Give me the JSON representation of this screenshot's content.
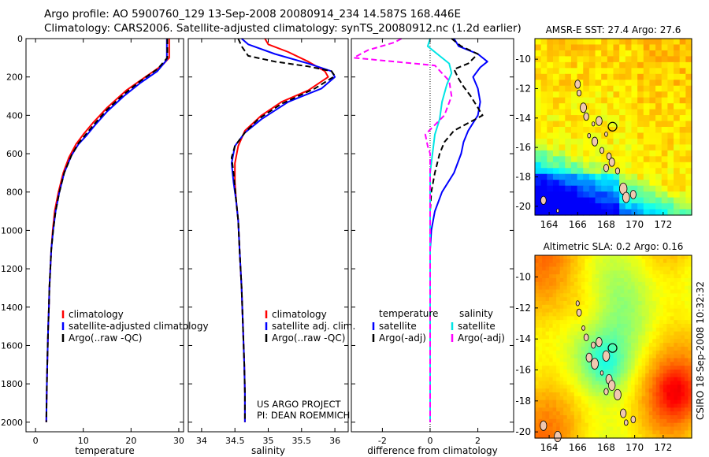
{
  "header": {
    "line1": "Argo profile: AO 5900760_129 13-Sep-2008 20080914_234 14.587S 168.446E",
    "line2": "Climatology: CARS2006. Satellite-adjusted climatology: synTS_20080912.nc (1.2d earlier)"
  },
  "colors": {
    "climatology": "#ff0000",
    "satellite": "#0000ff",
    "argo": "#000000",
    "sat_salinity_diff": "#00e5e5",
    "argo_salinity_diff": "#ff00ff"
  },
  "side_text": "CSIRO 18-Sep-2008 10:32:32",
  "chart_data": [
    {
      "type": "line",
      "xlabel": "temperature",
      "ylim": [
        2050,
        0
      ],
      "xlim": [
        -2,
        31
      ],
      "xticks": [
        "0",
        "10",
        "20",
        "30"
      ],
      "yticks": [
        "0",
        "200",
        "400",
        "600",
        "800",
        "1000",
        "1200",
        "1400",
        "1600",
        "1800",
        "2000"
      ],
      "legend": [
        "climatology",
        "satellite-adjusted climatology",
        "Argo(..raw -QC)"
      ],
      "series": [
        {
          "name": "climatology",
          "style": "solid",
          "color": "#ff0000",
          "points": [
            [
              28.0,
              0
            ],
            [
              28.0,
              100
            ],
            [
              26.5,
              140
            ],
            [
              23.0,
              200
            ],
            [
              19.0,
              270
            ],
            [
              15.0,
              360
            ],
            [
              12.0,
              440
            ],
            [
              10.0,
              500
            ],
            [
              8.5,
              550
            ],
            [
              7.0,
              620
            ],
            [
              5.8,
              700
            ],
            [
              4.8,
              800
            ],
            [
              4.0,
              900
            ],
            [
              3.6,
              1000
            ],
            [
              3.3,
              1100
            ],
            [
              3.1,
              1200
            ],
            [
              2.9,
              1300
            ],
            [
              2.8,
              1400
            ],
            [
              2.65,
              1500
            ],
            [
              2.55,
              1600
            ],
            [
              2.45,
              1700
            ],
            [
              2.38,
              1800
            ],
            [
              2.3,
              1900
            ],
            [
              2.25,
              2000
            ]
          ]
        },
        {
          "name": "satellite-adjusted climatology",
          "style": "solid",
          "color": "#0000ff",
          "points": [
            [
              27.5,
              0
            ],
            [
              27.5,
              110
            ],
            [
              25.5,
              170
            ],
            [
              22.0,
              230
            ],
            [
              18.5,
              300
            ],
            [
              15.0,
              380
            ],
            [
              12.5,
              450
            ],
            [
              10.5,
              510
            ],
            [
              9.0,
              550
            ],
            [
              7.5,
              610
            ],
            [
              6.0,
              700
            ],
            [
              5.0,
              800
            ],
            [
              4.2,
              900
            ],
            [
              3.7,
              1000
            ],
            [
              3.3,
              1100
            ],
            [
              3.1,
              1200
            ],
            [
              2.9,
              1300
            ],
            [
              2.8,
              1400
            ],
            [
              2.65,
              1500
            ],
            [
              2.55,
              1600
            ],
            [
              2.45,
              1700
            ],
            [
              2.38,
              1800
            ],
            [
              2.3,
              1900
            ],
            [
              2.25,
              2000
            ]
          ]
        },
        {
          "name": "Argo(..raw -QC)",
          "style": "dashed",
          "color": "#000000",
          "points": [
            [
              27.6,
              0
            ],
            [
              27.6,
              100
            ],
            [
              25.5,
              160
            ],
            [
              22.0,
              220
            ],
            [
              18.5,
              290
            ],
            [
              15.0,
              370
            ],
            [
              12.5,
              440
            ],
            [
              10.5,
              500
            ],
            [
              9.0,
              545
            ],
            [
              7.5,
              610
            ],
            [
              6.0,
              700
            ],
            [
              5.0,
              800
            ],
            [
              4.2,
              900
            ],
            [
              3.7,
              1000
            ],
            [
              3.3,
              1100
            ],
            [
              3.1,
              1200
            ],
            [
              2.9,
              1300
            ],
            [
              2.8,
              1400
            ],
            [
              2.65,
              1500
            ],
            [
              2.55,
              1600
            ],
            [
              2.45,
              1700
            ],
            [
              2.38,
              1800
            ],
            [
              2.3,
              1900
            ],
            [
              2.25,
              2000
            ]
          ]
        }
      ]
    },
    {
      "type": "line",
      "xlabel": "salinity",
      "ylim": [
        2050,
        0
      ],
      "xlim": [
        33.8,
        36.2
      ],
      "xticks": [
        "34",
        "34.5",
        "35",
        "35.5",
        "36"
      ],
      "legend": [
        "climatology",
        "satellite adj. clim.",
        "Argo(..raw -QC)"
      ],
      "annotation": [
        "US ARGO PROJECT",
        "PI: DEAN ROEMMICH"
      ],
      "series": [
        {
          "name": "climatology",
          "style": "solid",
          "color": "#ff0000",
          "points": [
            [
              34.95,
              0
            ],
            [
              35.0,
              30
            ],
            [
              35.3,
              70
            ],
            [
              35.6,
              120
            ],
            [
              35.85,
              170
            ],
            [
              35.9,
              200
            ],
            [
              35.6,
              270
            ],
            [
              35.2,
              330
            ],
            [
              34.9,
              400
            ],
            [
              34.65,
              480
            ],
            [
              34.55,
              560
            ],
            [
              34.5,
              650
            ],
            [
              34.5,
              750
            ],
            [
              34.52,
              850
            ],
            [
              34.55,
              950
            ],
            [
              34.57,
              1100
            ],
            [
              34.6,
              1300
            ],
            [
              34.62,
              1500
            ],
            [
              34.64,
              1700
            ],
            [
              34.65,
              1850
            ],
            [
              34.65,
              2000
            ]
          ]
        },
        {
          "name": "satellite adj. clim.",
          "style": "solid",
          "color": "#0000ff",
          "points": [
            [
              34.6,
              0
            ],
            [
              34.7,
              30
            ],
            [
              35.1,
              80
            ],
            [
              35.6,
              130
            ],
            [
              35.95,
              170
            ],
            [
              36.0,
              200
            ],
            [
              35.8,
              260
            ],
            [
              35.3,
              330
            ],
            [
              34.9,
              420
            ],
            [
              34.65,
              490
            ],
            [
              34.5,
              560
            ],
            [
              34.45,
              650
            ],
            [
              34.48,
              750
            ],
            [
              34.52,
              850
            ],
            [
              34.55,
              950
            ],
            [
              34.57,
              1100
            ],
            [
              34.6,
              1300
            ],
            [
              34.62,
              1500
            ],
            [
              34.64,
              1700
            ],
            [
              34.65,
              1850
            ],
            [
              34.65,
              2000
            ]
          ]
        },
        {
          "name": "Argo(..raw -QC)",
          "style": "dashed",
          "color": "#000000",
          "points": [
            [
              34.55,
              0
            ],
            [
              34.6,
              40
            ],
            [
              34.7,
              90
            ],
            [
              35.1,
              120
            ],
            [
              35.6,
              145
            ],
            [
              35.95,
              170
            ],
            [
              36.0,
              195
            ],
            [
              35.7,
              260
            ],
            [
              35.2,
              340
            ],
            [
              34.85,
              420
            ],
            [
              34.65,
              490
            ],
            [
              34.5,
              560
            ],
            [
              34.45,
              620
            ],
            [
              34.48,
              700
            ],
            [
              34.52,
              850
            ],
            [
              34.55,
              950
            ],
            [
              34.57,
              1100
            ],
            [
              34.6,
              1300
            ],
            [
              34.62,
              1500
            ],
            [
              34.64,
              1700
            ],
            [
              34.65,
              1850
            ],
            [
              34.65,
              2000
            ]
          ]
        }
      ]
    },
    {
      "type": "line",
      "xlabel": "difference from climatology",
      "ylim": [
        2050,
        0
      ],
      "xlim": [
        -3.3,
        3.5
      ],
      "xticks": [
        "-2",
        "0",
        "2"
      ],
      "legend": [
        [
          "temperature",
          "salinity"
        ],
        [
          "satellite",
          "satellite"
        ],
        [
          "Argo(-adj)",
          "Argo(-adj)"
        ]
      ],
      "series": [
        {
          "name": "temperature satellite",
          "style": "solid",
          "color": "#0000ff",
          "points": [
            [
              1.0,
              0
            ],
            [
              1.2,
              40
            ],
            [
              2.0,
              80
            ],
            [
              2.4,
              120
            ],
            [
              2.1,
              150
            ],
            [
              1.8,
              200
            ],
            [
              2.0,
              260
            ],
            [
              2.1,
              330
            ],
            [
              2.0,
              400
            ],
            [
              1.6,
              480
            ],
            [
              1.4,
              540
            ],
            [
              1.3,
              600
            ],
            [
              1.0,
              700
            ],
            [
              0.5,
              800
            ],
            [
              0.2,
              900
            ],
            [
              0.05,
              1000
            ],
            [
              0.0,
              1100
            ],
            [
              0.0,
              2000
            ]
          ]
        },
        {
          "name": "temperature Argo(-adj)",
          "style": "dashed",
          "color": "#000000",
          "points": [
            [
              0.9,
              0
            ],
            [
              1.3,
              40
            ],
            [
              2.0,
              80
            ],
            [
              1.6,
              130
            ],
            [
              1.0,
              160
            ],
            [
              1.2,
              210
            ],
            [
              1.4,
              250
            ],
            [
              1.7,
              300
            ],
            [
              2.2,
              400
            ],
            [
              1.0,
              480
            ],
            [
              0.6,
              540
            ],
            [
              0.4,
              600
            ],
            [
              0.2,
              700
            ],
            [
              0.05,
              800
            ],
            [
              0.0,
              900
            ],
            [
              0.0,
              2000
            ]
          ]
        },
        {
          "name": "salinity satellite",
          "style": "solid",
          "color": "#00e5e5",
          "points": [
            [
              0.0,
              0
            ],
            [
              -0.1,
              40
            ],
            [
              0.3,
              80
            ],
            [
              0.8,
              130
            ],
            [
              0.9,
              180
            ],
            [
              0.7,
              240
            ],
            [
              0.5,
              330
            ],
            [
              0.4,
              420
            ],
            [
              0.2,
              500
            ],
            [
              0.1,
              600
            ],
            [
              0.0,
              700
            ],
            [
              0.0,
              800
            ],
            [
              0.0,
              2000
            ]
          ]
        },
        {
          "name": "salinity Argo(-adj)",
          "style": "dashed",
          "color": "#ff00ff",
          "points": [
            [
              -1.2,
              0
            ],
            [
              -1.5,
              20
            ],
            [
              -2.6,
              60
            ],
            [
              -3.2,
              100
            ],
            [
              -1.5,
              120
            ],
            [
              0.2,
              140
            ],
            [
              0.8,
              220
            ],
            [
              0.9,
              300
            ],
            [
              0.6,
              400
            ],
            [
              -0.2,
              500
            ],
            [
              -0.1,
              560
            ],
            [
              0.0,
              600
            ],
            [
              0.0,
              2000
            ]
          ]
        }
      ]
    },
    {
      "type": "heatmap",
      "title": "AMSR-E SST: 27.4 Argo: 27.6",
      "xlim": [
        163,
        174
      ],
      "ylim": [
        -20.6,
        -8.6
      ],
      "xticks": [
        "164",
        "166",
        "168",
        "170",
        "172"
      ],
      "yticks": [
        "-10",
        "-12",
        "-14",
        "-16",
        "-18",
        "-20"
      ],
      "colormap": "jet",
      "marker": [
        168.446,
        -14.587
      ]
    },
    {
      "type": "heatmap",
      "title": "Altimetric SLA: 0.2 Argo: 0.16",
      "xlim": [
        163,
        174
      ],
      "ylim": [
        -20.4,
        -8.6
      ],
      "xticks": [
        "164",
        "166",
        "168",
        "170",
        "172"
      ],
      "yticks": [
        "-10",
        "-12",
        "-14",
        "-16",
        "-18",
        "-20"
      ],
      "colormap": "jet",
      "marker": [
        168.446,
        -14.587
      ]
    }
  ]
}
